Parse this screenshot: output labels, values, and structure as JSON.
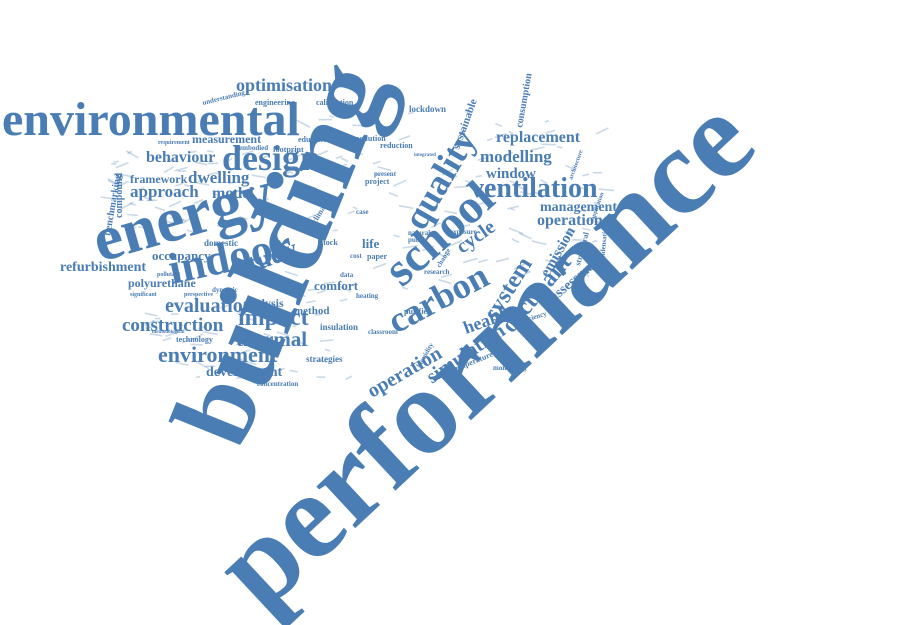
{
  "cloud": {
    "color": "#4a7db3",
    "words": {
      "performance": "performance",
      "building": "building",
      "energy": "energy",
      "environmental": "environmental",
      "indoor": "indoor",
      "school": "school",
      "design": "design",
      "quality": "quality",
      "carbon": "carbon",
      "ventilation": "ventilation",
      "study": "study",
      "impact": "impact",
      "thermal": "thermal",
      "environment": "environment",
      "construction": "construction",
      "evaluation": "evaluation",
      "system": "system",
      "occupant": "occupant",
      "simulation": "simulation",
      "operation": "operation",
      "health": "health",
      "modelling": "modelling",
      "window": "window",
      "replacement": "replacement",
      "management": "management",
      "operational": "operational",
      "optimisation": "optimisation",
      "approach": "approach",
      "behaviour": "behaviour",
      "dwelling": "dwelling",
      "model": "model",
      "framework": "framework",
      "measurement": "measurement",
      "refurbishment": "refurbishment",
      "occupancy": "occupancy",
      "polyurethane": "polyurethane",
      "development": "development",
      "analysis": "analysis",
      "method": "method",
      "comfort": "comfort",
      "emission": "emission",
      "assessment": "assessment",
      "cycle": "cycle",
      "life": "life",
      "sustainable": "sustainable",
      "consumption": "consumption",
      "lockdown": "lockdown",
      "engineering": "engineering",
      "calibration": "calibration",
      "compound": "compound",
      "benchmarking": "benchmarking",
      "domestic": "domestic",
      "technology": "technology",
      "strategies": "strategies",
      "insulation": "insulation",
      "classroom": "classroom",
      "temperature": "temperature",
      "monitoring": "monitoring",
      "concentration": "concentration",
      "humidity": "humidity",
      "education": "education",
      "footprint": "footprint",
      "embodied": "embodied",
      "pollution": "pollution",
      "reduction": "reduction",
      "project": "project",
      "present": "present",
      "exposure": "exposure",
      "natural": "natural",
      "public": "public",
      "stock": "stock",
      "paper": "paper",
      "cost": "cost",
      "case": "case",
      "data": "data",
      "research": "research",
      "heating": "heating",
      "purifier": "purifier",
      "change": "change",
      "structural": "structural",
      "efficiency": "efficiency",
      "condensation": "condensation",
      "application": "application",
      "architecture": "architecture",
      "understanding": "understanding",
      "requirement": "requirement",
      "pollutant": "pollutant",
      "significant": "significant",
      "perspective": "perspective",
      "dynamic": "dynamic",
      "climate": "climate",
      "integrated": "integrated",
      "methodological": "methodological"
    }
  }
}
